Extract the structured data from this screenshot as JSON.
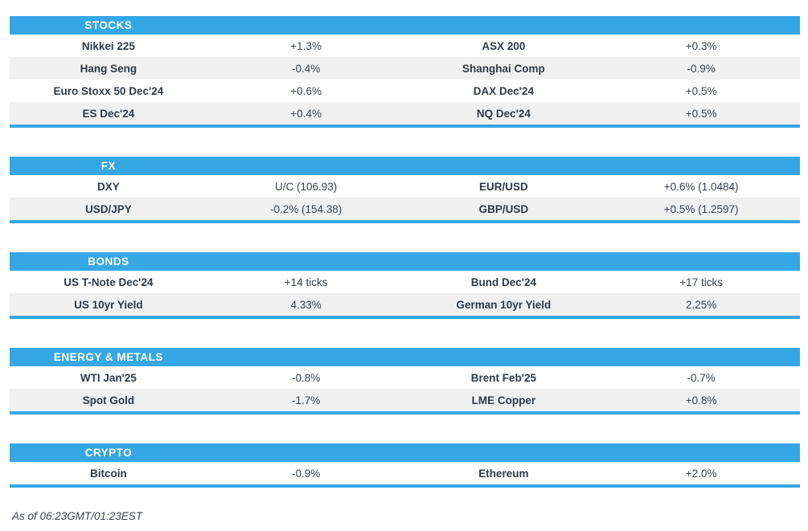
{
  "theme": {
    "accent_blue": "#35a7e5",
    "stripe_gray": "#f0f0f0",
    "header_text": "#ffffff",
    "body_text": "#333b46"
  },
  "sections": [
    {
      "id": "stocks",
      "title": "STOCKS",
      "rows": [
        [
          "Nikkei 225",
          "+1.3%",
          "ASX 200",
          "+0.3%"
        ],
        [
          "Hang Seng",
          "-0.4%",
          "Shanghai Comp",
          "-0.9%"
        ],
        [
          "Euro Stoxx 50 Dec'24",
          "+0.6%",
          "DAX Dec'24",
          "+0.5%"
        ],
        [
          "ES Dec'24",
          "+0.4%",
          "NQ Dec'24",
          "+0.5%"
        ]
      ]
    },
    {
      "id": "fx",
      "title": "FX",
      "rows": [
        [
          "DXY",
          "U/C (106.93)",
          "EUR/USD",
          "+0.6% (1.0484)"
        ],
        [
          "USD/JPY",
          "-0.2% (154.38)",
          "GBP/USD",
          "+0.5% (1.2597)"
        ]
      ]
    },
    {
      "id": "bonds",
      "title": "BONDS",
      "rows": [
        [
          "US T-Note Dec'24",
          "+14 ticks",
          "Bund Dec'24",
          "+17 ticks"
        ],
        [
          "US 10yr Yield",
          "4.33%",
          "German 10yr Yield",
          "2.25%"
        ]
      ]
    },
    {
      "id": "energy-metals",
      "title": "ENERGY & METALS",
      "rows": [
        [
          "WTI Jan'25",
          "-0.8%",
          "Brent Feb'25",
          "-0.7%"
        ],
        [
          "Spot Gold",
          "-1.7%",
          "LME Copper",
          "+0.8%"
        ]
      ]
    },
    {
      "id": "crypto",
      "title": "CRYPTO",
      "rows": [
        [
          "Bitcoin",
          "-0.9%",
          "Ethereum",
          "+2.0%"
        ]
      ]
    }
  ],
  "footer": {
    "as_of": "As of 06:23GMT/01:23EST"
  }
}
